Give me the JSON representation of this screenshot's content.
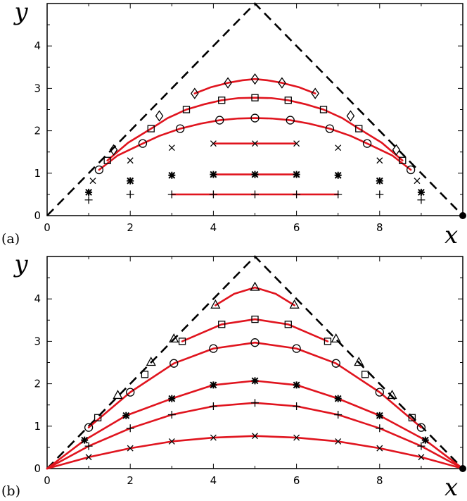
{
  "figure": {
    "panels": [
      {
        "label": "(a)",
        "xlabel": "x",
        "ylabel": "y"
      },
      {
        "label": "(b)",
        "xlabel": "x",
        "ylabel": "y"
      }
    ]
  },
  "colors": {
    "curve": "#e0141e",
    "boundary": "#000000",
    "marker": "#000000"
  },
  "chart_data": [
    {
      "type": "scatter",
      "title": "",
      "xlabel": "x",
      "ylabel": "y",
      "xlim": [
        0,
        10
      ],
      "ylim": [
        0,
        5
      ],
      "xticks": [
        0,
        2,
        4,
        6,
        8
      ],
      "yticks": [
        0,
        1,
        2,
        3,
        4
      ],
      "boundary": {
        "style": "dashed",
        "x": [
          0,
          5,
          10
        ],
        "y": [
          0,
          5,
          0
        ]
      },
      "endpoint": {
        "x": 10,
        "y": 0
      },
      "series": [
        {
          "marker": "plus",
          "x": [
            1,
            2,
            3,
            4,
            5,
            6,
            7,
            8,
            9
          ],
          "y": [
            0.37,
            0.5,
            0.5,
            0.5,
            0.5,
            0.5,
            0.5,
            0.5,
            0.37
          ],
          "curve_x": [
            3,
            4,
            5,
            6,
            7
          ],
          "curve_y": [
            0.5,
            0.5,
            0.5,
            0.5,
            0.5
          ]
        },
        {
          "marker": "asterisk",
          "x": [
            1,
            2,
            3,
            4,
            5,
            6,
            7,
            8,
            9
          ],
          "y": [
            0.55,
            0.82,
            0.95,
            0.97,
            0.97,
            0.97,
            0.95,
            0.82,
            0.55
          ],
          "curve_x": [
            4,
            5,
            6
          ],
          "curve_y": [
            0.97,
            0.97,
            0.97
          ]
        },
        {
          "marker": "cross",
          "x": [
            1.1,
            2,
            3,
            4,
            5,
            6,
            7,
            8,
            8.9
          ],
          "y": [
            0.82,
            1.3,
            1.6,
            1.7,
            1.7,
            1.7,
            1.6,
            1.3,
            0.82
          ],
          "curve_x": [
            4,
            5,
            6
          ],
          "curve_y": [
            1.7,
            1.7,
            1.7
          ]
        },
        {
          "marker": "circle",
          "x": [
            1.25,
            2.3,
            3.2,
            4.15,
            5,
            5.85,
            6.8,
            7.7,
            8.75
          ],
          "y": [
            1.08,
            1.7,
            2.05,
            2.25,
            2.3,
            2.25,
            2.05,
            1.7,
            1.08
          ],
          "curve_x": [
            1.25,
            1.7,
            2.3,
            2.7,
            3.2,
            3.7,
            4.15,
            4.6,
            5,
            5.4,
            5.85,
            6.3,
            6.8,
            7.3,
            7.7,
            8.3,
            8.75
          ],
          "curve_y": [
            1.08,
            1.42,
            1.7,
            1.88,
            2.05,
            2.17,
            2.25,
            2.29,
            2.3,
            2.29,
            2.25,
            2.17,
            2.05,
            1.88,
            1.7,
            1.42,
            1.08
          ]
        },
        {
          "marker": "square",
          "x": [
            1.45,
            2.5,
            3.35,
            4.2,
            5,
            5.8,
            6.65,
            7.5,
            8.55
          ],
          "y": [
            1.3,
            2.05,
            2.5,
            2.72,
            2.78,
            2.72,
            2.5,
            2.05,
            1.3
          ],
          "curve_x": [
            1.45,
            1.95,
            2.5,
            2.9,
            3.35,
            3.8,
            4.2,
            4.6,
            5,
            5.4,
            5.8,
            6.2,
            6.65,
            7.1,
            7.5,
            8.05,
            8.55
          ],
          "curve_y": [
            1.3,
            1.72,
            2.05,
            2.3,
            2.5,
            2.63,
            2.72,
            2.77,
            2.78,
            2.77,
            2.72,
            2.63,
            2.5,
            2.3,
            2.05,
            1.72,
            1.3
          ],
          "curve_from_index": 1,
          "curve_to_index": 7
        },
        {
          "marker": "diamond",
          "x": [
            1.6,
            2.7,
            3.55,
            4.35,
            5,
            5.65,
            6.45,
            7.3,
            8.4
          ],
          "y": [
            1.55,
            2.35,
            2.88,
            3.13,
            3.22,
            3.13,
            2.88,
            2.35,
            1.55
          ],
          "curve_x": [
            3.55,
            3.95,
            4.35,
            4.7,
            5,
            5.3,
            5.65,
            6.05,
            6.45
          ],
          "curve_y": [
            2.88,
            3.03,
            3.13,
            3.19,
            3.22,
            3.19,
            3.13,
            3.03,
            2.88
          ]
        }
      ]
    },
    {
      "type": "scatter",
      "title": "",
      "xlabel": "x",
      "ylabel": "y",
      "xlim": [
        0,
        10
      ],
      "ylim": [
        0,
        5
      ],
      "xticks": [
        0,
        2,
        4,
        6,
        8
      ],
      "yticks": [
        0,
        1,
        2,
        3,
        4
      ],
      "boundary": {
        "style": "dashed",
        "x": [
          0,
          5,
          10
        ],
        "y": [
          0,
          5,
          0
        ]
      },
      "endpoint": {
        "x": 10,
        "y": 0
      },
      "series": [
        {
          "marker": "cross",
          "x": [
            1,
            2,
            3,
            4,
            5,
            6,
            7,
            8,
            9
          ],
          "y": [
            0.27,
            0.48,
            0.64,
            0.73,
            0.77,
            0.73,
            0.64,
            0.48,
            0.27
          ],
          "curve_x": [
            0,
            1,
            2,
            3,
            4,
            5,
            6,
            7,
            8,
            9,
            10
          ],
          "curve_y": [
            0,
            0.27,
            0.48,
            0.64,
            0.73,
            0.77,
            0.73,
            0.64,
            0.48,
            0.27,
            0
          ]
        },
        {
          "marker": "plus",
          "x": [
            1,
            2,
            3,
            4,
            5,
            6,
            7,
            8,
            9
          ],
          "y": [
            0.53,
            0.95,
            1.27,
            1.47,
            1.55,
            1.47,
            1.27,
            0.95,
            0.53
          ],
          "curve_x": [
            0,
            1,
            2,
            3,
            4,
            5,
            6,
            7,
            8,
            9,
            10
          ],
          "curve_y": [
            0,
            0.53,
            0.95,
            1.27,
            1.47,
            1.55,
            1.47,
            1.27,
            0.95,
            0.53,
            0
          ]
        },
        {
          "marker": "asterisk",
          "x": [
            0.9,
            1.9,
            3,
            4,
            5,
            6,
            7,
            8,
            9.1
          ],
          "y": [
            0.67,
            1.25,
            1.65,
            1.97,
            2.07,
            1.97,
            1.65,
            1.25,
            0.67
          ],
          "curve_x": [
            0,
            0.9,
            1.9,
            3,
            4,
            5,
            6,
            7,
            8,
            9.1,
            10
          ],
          "curve_y": [
            0,
            0.67,
            1.25,
            1.65,
            1.97,
            2.07,
            1.97,
            1.65,
            1.25,
            0.67,
            0
          ]
        },
        {
          "marker": "circle",
          "x": [
            1,
            2,
            3.05,
            4,
            5,
            6,
            6.95,
            8,
            9
          ],
          "y": [
            0.97,
            1.8,
            2.48,
            2.83,
            2.97,
            2.83,
            2.48,
            1.8,
            0.97
          ],
          "curve_x": [
            1,
            2,
            3.05,
            4,
            5,
            6,
            6.95,
            8,
            9
          ],
          "curve_y": [
            0.97,
            1.8,
            2.48,
            2.83,
            2.97,
            2.83,
            2.48,
            1.8,
            0.97
          ]
        },
        {
          "marker": "square",
          "x": [
            1.22,
            2.35,
            3.25,
            4.2,
            5,
            5.8,
            6.75,
            7.65,
            8.78
          ],
          "y": [
            1.2,
            2.22,
            3.0,
            3.4,
            3.52,
            3.4,
            3.0,
            2.22,
            1.2
          ],
          "curve_x": [
            3.25,
            4.2,
            5,
            5.8,
            6.75
          ],
          "curve_y": [
            3.0,
            3.4,
            3.52,
            3.4,
            3.0
          ]
        },
        {
          "marker": "triangle",
          "x": [
            1.7,
            2.5,
            3.05,
            4.05,
            5,
            5.95,
            6.95,
            7.5,
            8.3
          ],
          "y": [
            1.72,
            2.5,
            3.05,
            3.85,
            4.27,
            3.85,
            3.05,
            2.5,
            1.72
          ],
          "curve_x": [
            4.05,
            4.5,
            5,
            5.5,
            5.95
          ],
          "curve_y": [
            3.85,
            4.12,
            4.27,
            4.12,
            3.85
          ]
        }
      ]
    }
  ]
}
